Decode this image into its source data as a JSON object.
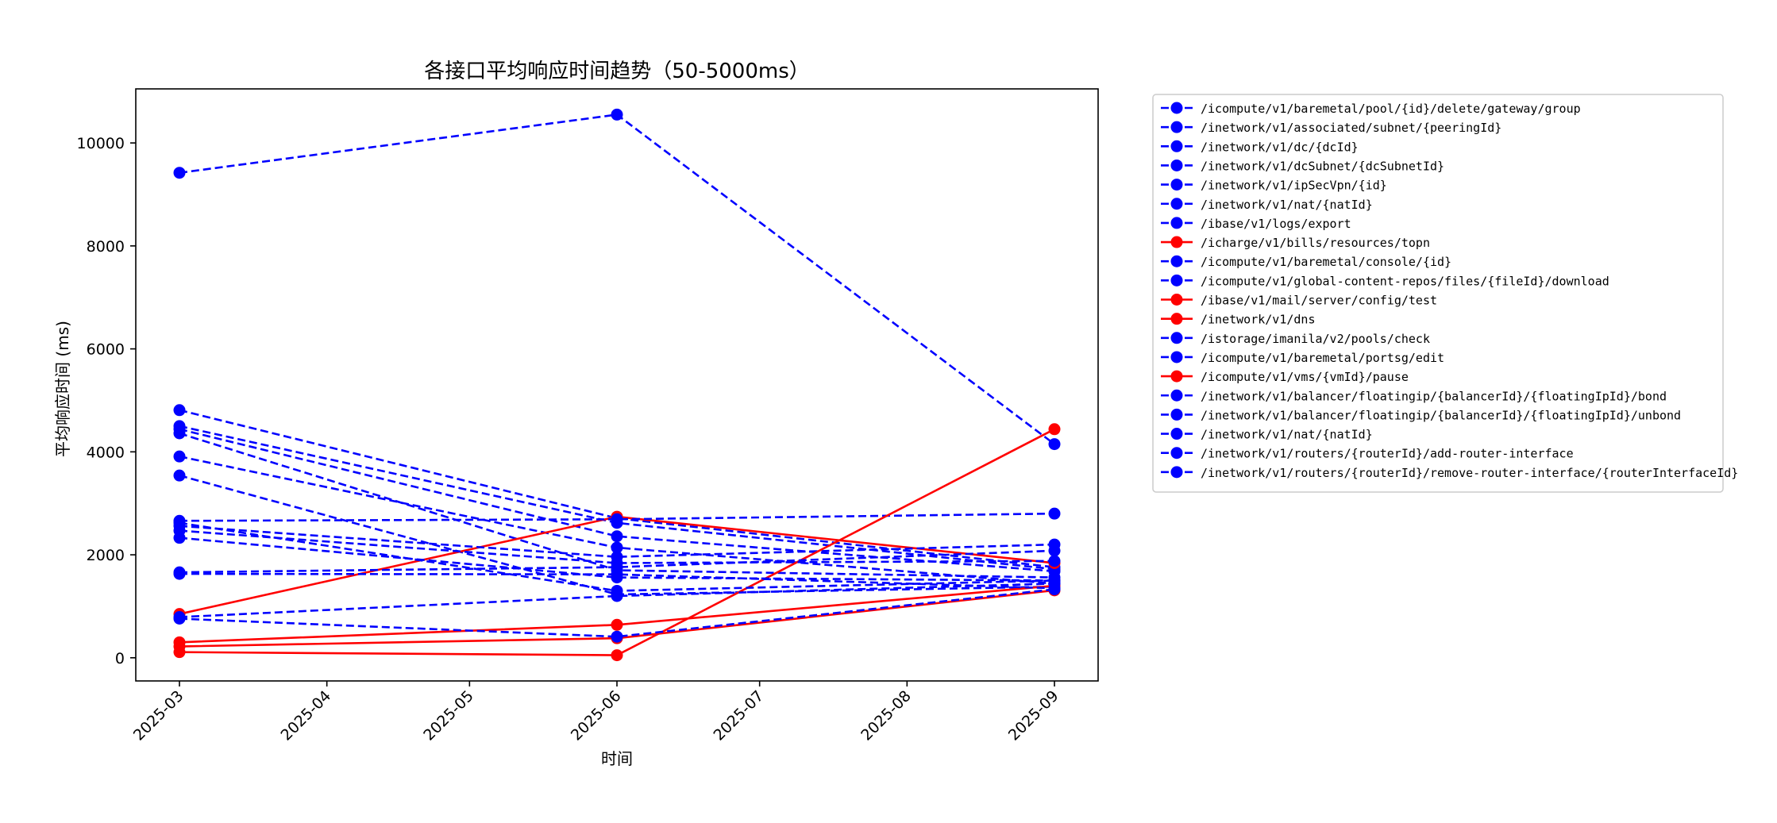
{
  "chart_data": {
    "type": "line",
    "title": "各接口平均响应时间趋势（50-5000ms）",
    "xlabel": "时间",
    "ylabel": "平均响应时间 (ms)",
    "x_ticks": [
      "2025-03",
      "2025-04",
      "2025-05",
      "2025-06",
      "2025-07",
      "2025-08",
      "2025-09"
    ],
    "x": [
      "2025-03",
      "2025-06",
      "2025-09"
    ],
    "y_ticks": [
      0,
      2000,
      4000,
      6000,
      8000,
      10000
    ],
    "ylim": [
      -450,
      11050
    ],
    "grid": false,
    "legend_position": "outside-right",
    "series": [
      {
        "name": "/icompute/v1/baremetal/pool/{id}/delete/gateway/group",
        "color": "#0000ff",
        "style": "dashed",
        "values": [
          9420,
          10550,
          4150
        ]
      },
      {
        "name": "/inetwork/v1/associated/subnet/{peeringId}",
        "color": "#0000ff",
        "style": "dashed",
        "values": [
          4810,
          2710,
          1760
        ]
      },
      {
        "name": "/inetwork/v1/dc/{dcId}",
        "color": "#0000ff",
        "style": "dashed",
        "values": [
          4500,
          2620,
          1720
        ]
      },
      {
        "name": "/inetwork/v1/dcSubnet/{dcSubnetId}",
        "color": "#0000ff",
        "style": "dashed",
        "values": [
          4440,
          2360,
          1680
        ]
      },
      {
        "name": "/inetwork/v1/ipSecVpn/{id}",
        "color": "#0000ff",
        "style": "dashed",
        "values": [
          4360,
          1700,
          1560
        ]
      },
      {
        "name": "/inetwork/v1/nat/{natId}",
        "color": "#0000ff",
        "style": "dashed",
        "values": [
          3910,
          2140,
          1440
        ]
      },
      {
        "name": "/ibase/v1/logs/export",
        "color": "#0000ff",
        "style": "dashed",
        "values": [
          3540,
          1230,
          1380
        ]
      },
      {
        "name": "/icharge/v1/bills/resources/topn",
        "color": "#ff0000",
        "style": "solid",
        "values": [
          850,
          2740,
          1840
        ]
      },
      {
        "name": "/icompute/v1/baremetal/console/{id}",
        "color": "#0000ff",
        "style": "dashed",
        "values": [
          2660,
          2690,
          2800
        ]
      },
      {
        "name": "/icompute/v1/global-content-repos/files/{fileId}/download",
        "color": "#0000ff",
        "style": "dashed",
        "values": [
          2560,
          1960,
          2200
        ]
      },
      {
        "name": "/ibase/v1/mail/server/config/test",
        "color": "#ff0000",
        "style": "solid",
        "values": [
          110,
          50,
          4440
        ]
      },
      {
        "name": "/inetwork/v1/dns",
        "color": "#ff0000",
        "style": "solid",
        "values": [
          300,
          640,
          1400
        ]
      },
      {
        "name": "/istorage/imanila/v2/pools/check",
        "color": "#0000ff",
        "style": "dashed",
        "values": [
          2470,
          1840,
          1880
        ]
      },
      {
        "name": "/icompute/v1/baremetal/portsg/edit",
        "color": "#0000ff",
        "style": "dashed",
        "values": [
          2330,
          1560,
          1500
        ]
      },
      {
        "name": "/icompute/v1/vms/{vmId}/pause",
        "color": "#ff0000",
        "style": "solid",
        "values": [
          220,
          380,
          1310
        ]
      },
      {
        "name": "/inetwork/v1/balancer/floatingip/{balancerId}/{floatingIpId}/bond",
        "color": "#0000ff",
        "style": "dashed",
        "values": [
          1660,
          1760,
          2080
        ]
      },
      {
        "name": "/inetwork/v1/balancer/floatingip/{balancerId}/{floatingIpId}/unbond",
        "color": "#0000ff",
        "style": "dashed",
        "values": [
          1630,
          1620,
          1350
        ]
      },
      {
        "name": "/inetwork/v1/nat/{natId}",
        "color": "#0000ff",
        "style": "dashed",
        "values": [
          790,
          1200,
          1440
        ]
      },
      {
        "name": "/inetwork/v1/routers/{routerId}/add-router-interface",
        "color": "#0000ff",
        "style": "dashed",
        "values": [
          760,
          410,
          1330
        ]
      },
      {
        "name": "/inetwork/v1/routers/{routerId}/remove-router-interface/{routerInterfaceId}",
        "color": "#0000ff",
        "style": "dashed",
        "values": [
          2620,
          1300,
          1500
        ]
      }
    ]
  }
}
